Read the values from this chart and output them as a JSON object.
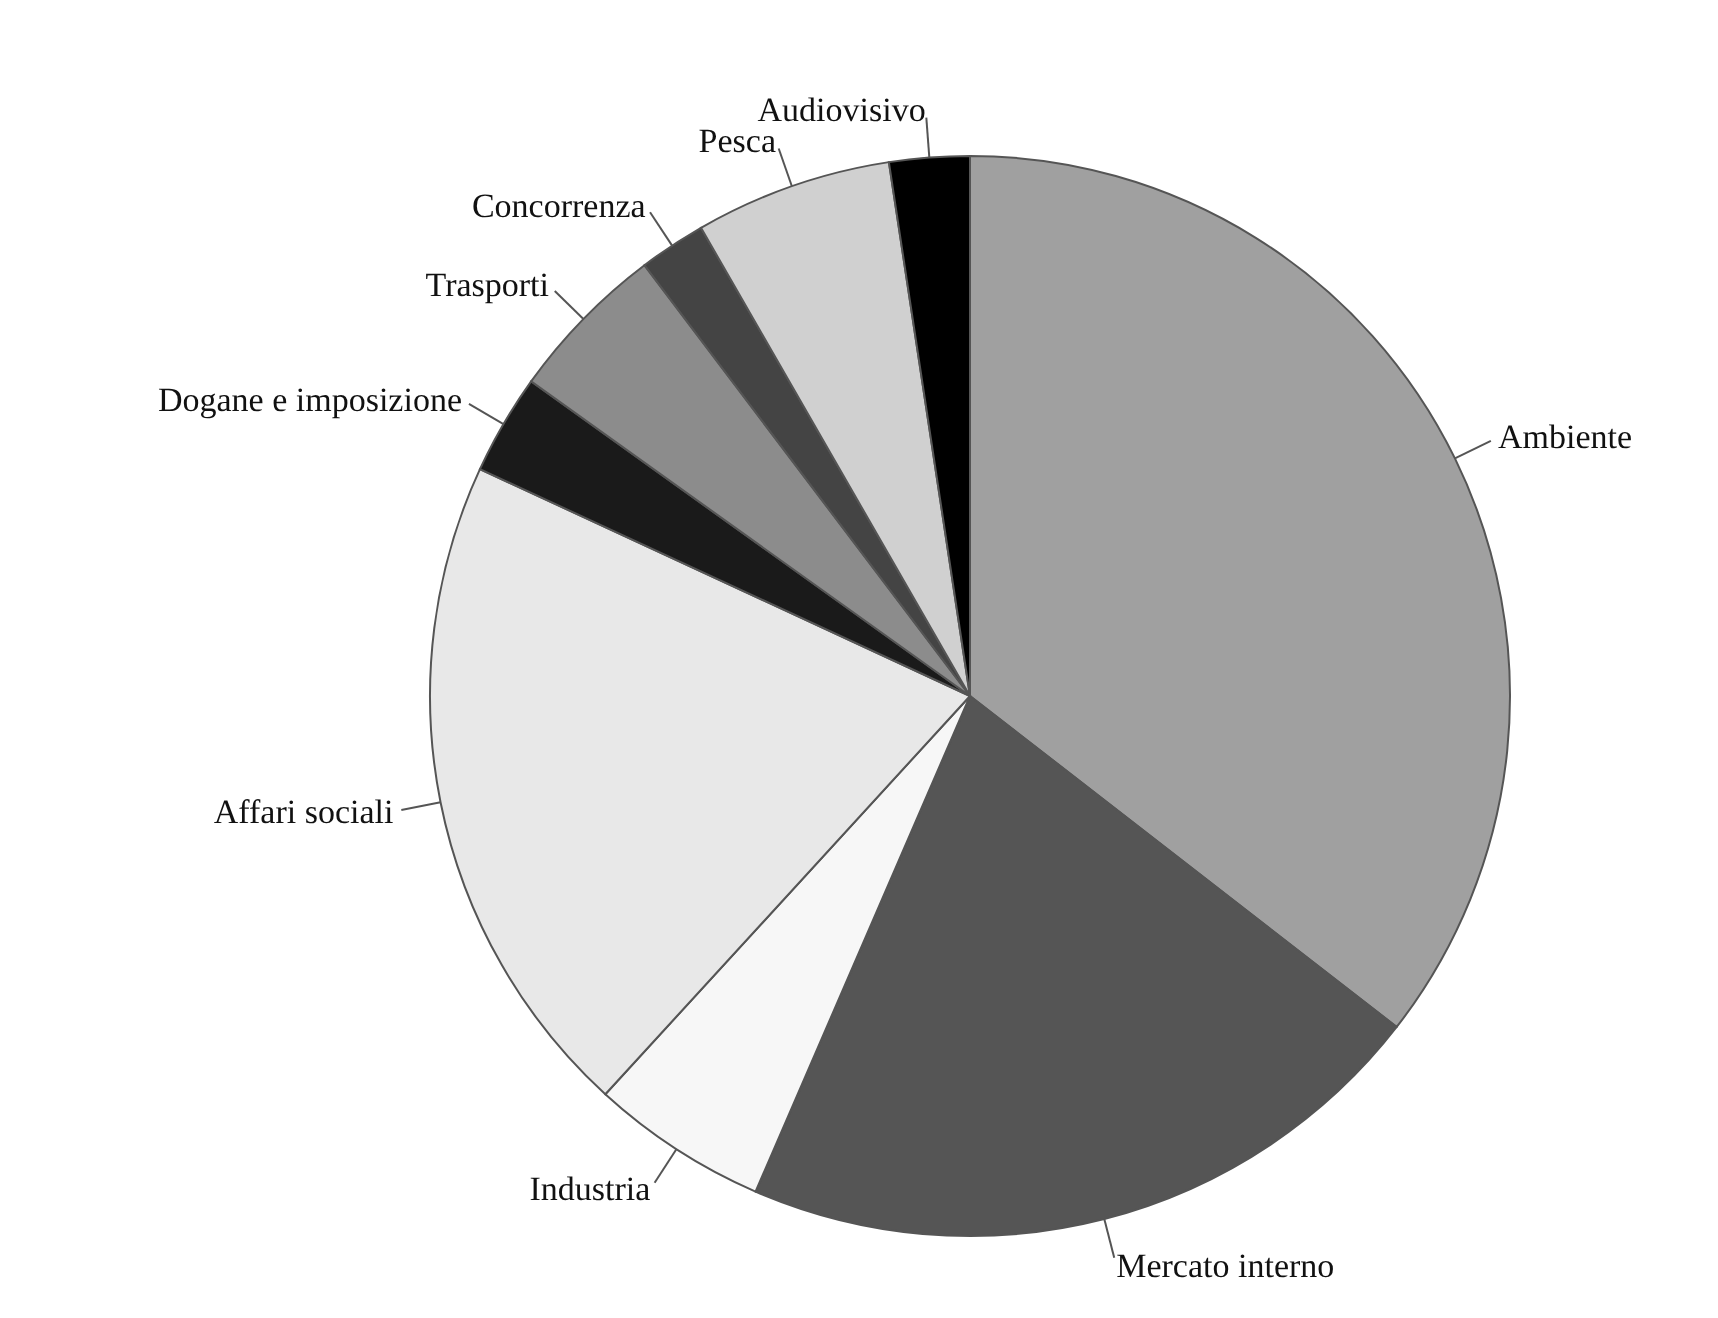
{
  "chart_data": {
    "type": "pie",
    "categories": [
      "Ambiente",
      "Mercato interno",
      "Industria",
      "Affari sociali",
      "Dogane e imposizione",
      "Trasporti",
      "Concorrenza",
      "Pesca",
      "Audiovisivo"
    ],
    "values": [
      35.5,
      21,
      5.3,
      20.1,
      3,
      4.8,
      2,
      5.9,
      2.4
    ],
    "colors": [
      "#a0a0a0",
      "#555555",
      "#f7f7f7",
      "#e8e8e8",
      "#1a1a1a",
      "#8c8c8c",
      "#444444",
      "#d0d0d0",
      "#000000"
    ],
    "legend": false
  }
}
